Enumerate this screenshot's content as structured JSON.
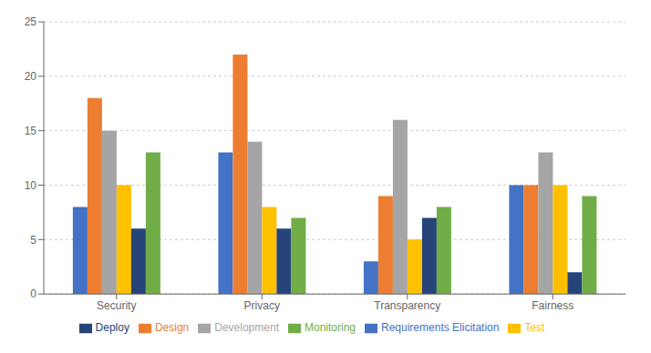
{
  "chart_data": {
    "type": "bar",
    "categories": [
      "Security",
      "Privacy",
      "Transparency",
      "Fairness"
    ],
    "series": [
      {
        "name": "Requirements Elicitation",
        "color": "#4472C4",
        "values": [
          8,
          13,
          3,
          10
        ]
      },
      {
        "name": "Design",
        "color": "#ED7D31",
        "values": [
          18,
          22,
          9,
          10
        ]
      },
      {
        "name": "Development",
        "color": "#A5A5A5",
        "values": [
          15,
          14,
          16,
          13
        ]
      },
      {
        "name": "Test",
        "color": "#FFC000",
        "values": [
          10,
          8,
          5,
          10
        ]
      },
      {
        "name": "Deploy",
        "color": "#264478",
        "values": [
          6,
          6,
          7,
          2
        ]
      },
      {
        "name": "Monitoring",
        "color": "#70AD47",
        "values": [
          13,
          7,
          8,
          9
        ]
      }
    ],
    "ylim": [
      0,
      25
    ],
    "yticks": [
      0,
      5,
      10,
      15,
      20,
      25
    ],
    "grid": true,
    "legend": "bottom"
  }
}
